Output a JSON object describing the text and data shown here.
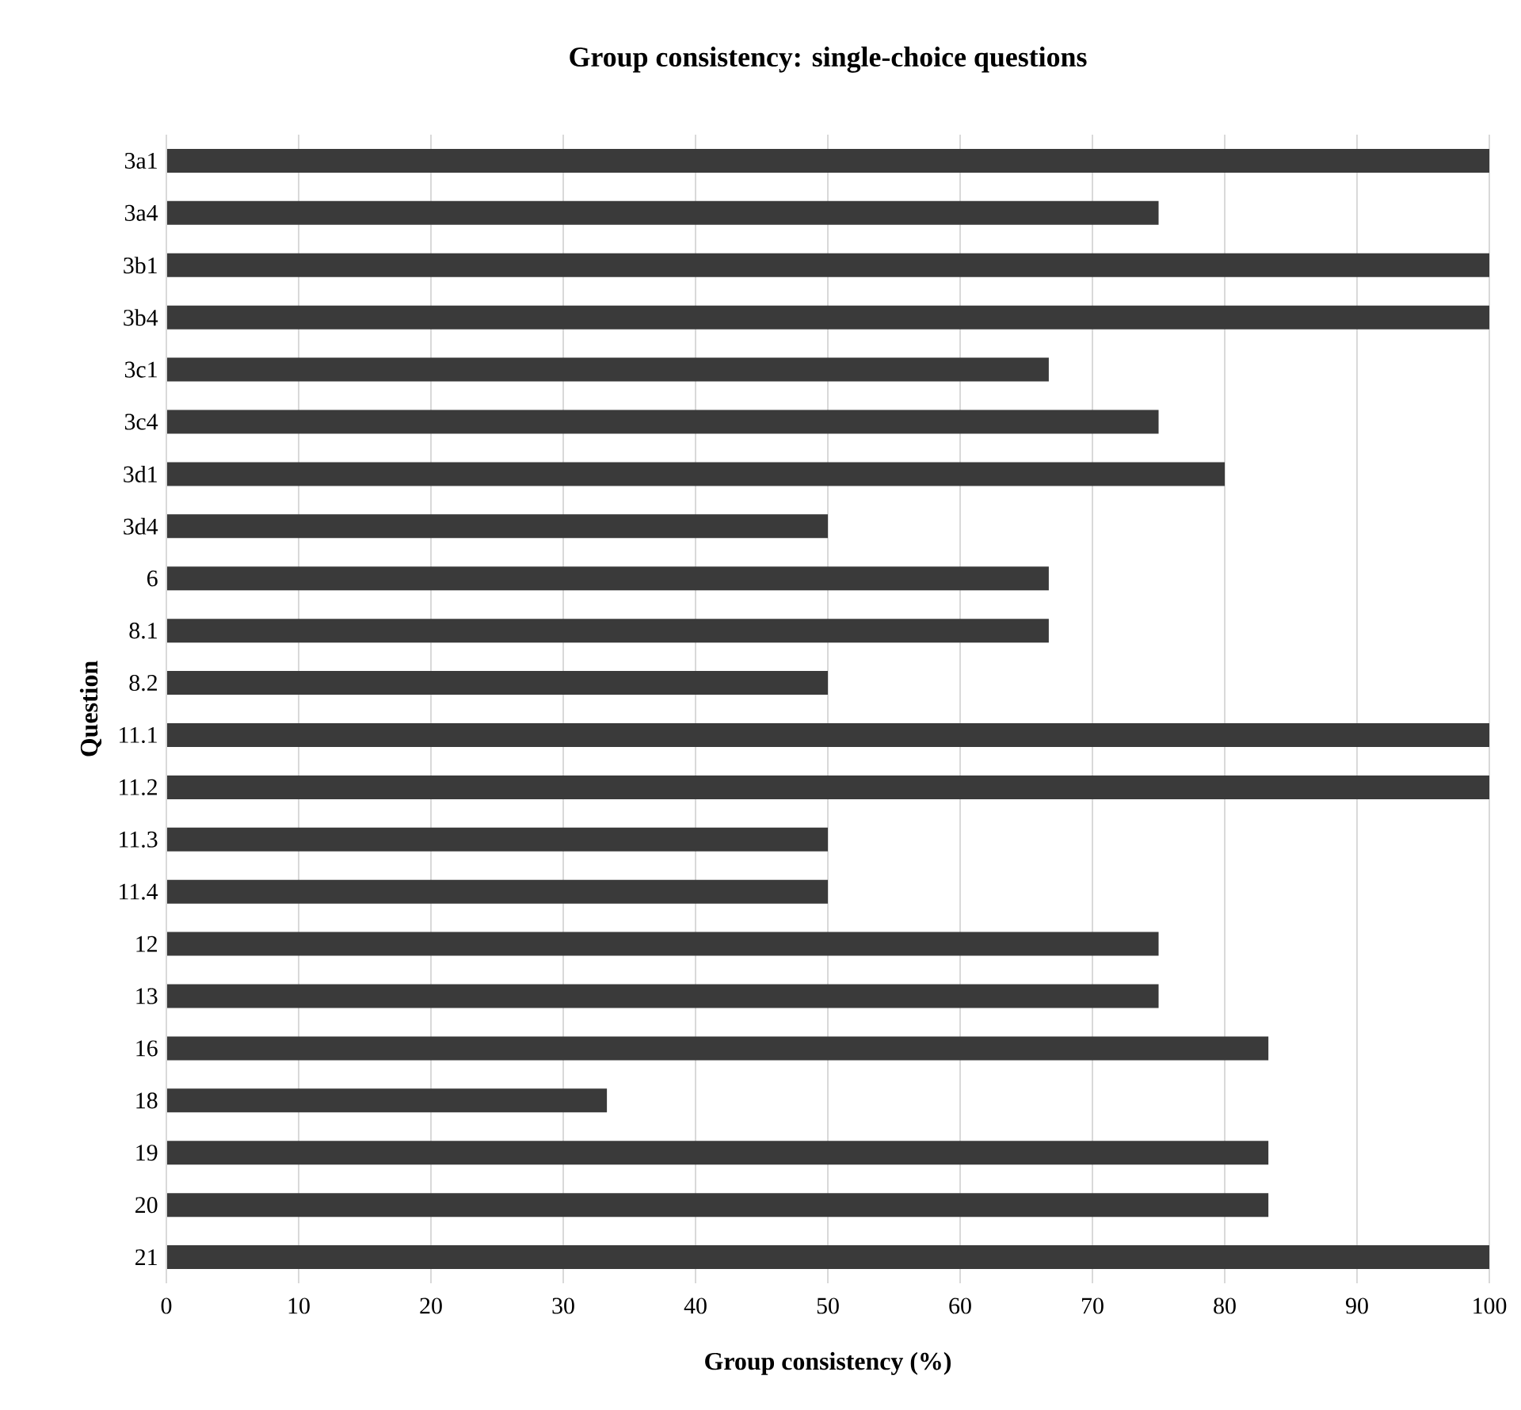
{
  "chart_data": {
    "type": "bar",
    "orientation": "horizontal",
    "title": "Group consistency: single-choice questions",
    "xlabel": "Group consistency (%)",
    "ylabel": "Question",
    "categories": [
      "3a1",
      "3a4",
      "3b1",
      "3b4",
      "3c1",
      "3c4",
      "3d1",
      "3d4",
      "6",
      "8.1",
      "8.2",
      "11.1",
      "11.2",
      "11.3",
      "11.4",
      "12",
      "13",
      "16",
      "18",
      "19",
      "20",
      "21"
    ],
    "values": [
      100,
      75,
      100,
      100,
      66.7,
      75,
      80,
      50,
      66.7,
      66.7,
      50,
      100,
      100,
      50,
      50,
      75,
      75,
      83.3,
      33.3,
      83.3,
      83.3,
      100
    ],
    "color": "#3a3a3a",
    "xlim": [
      0,
      100
    ],
    "xticks": [
      0,
      10,
      20,
      30,
      40,
      50,
      60,
      70,
      80,
      90,
      100
    ],
    "grid": "x"
  }
}
